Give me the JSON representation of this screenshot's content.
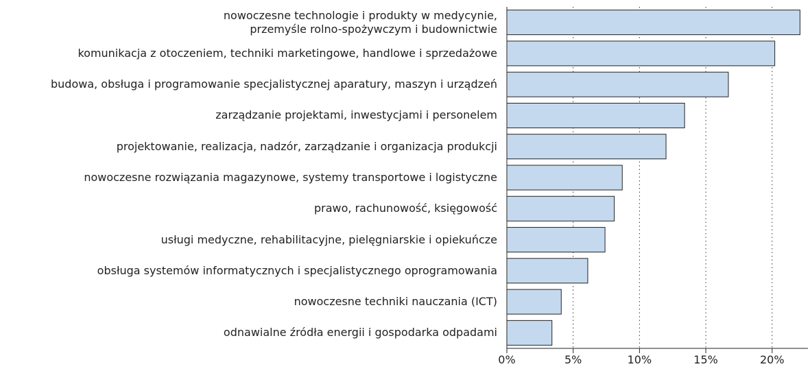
{
  "chart_data": {
    "type": "barh",
    "categories": [
      "nowoczesne technologie i produkty w medycynie,\nprzemyśle rolno-spożywczym i budownictwie",
      "komunikacja z otoczeniem, techniki marketingowe, handlowe i sprzedażowe",
      "budowa, obsługa i programowanie specjalistycznej aparatury, maszyn i urządzeń",
      "zarządzanie projektami, inwestycjami i personelem",
      "projektowanie, realizacja, nadzór, zarządzanie i organizacja produkcji",
      "nowoczesne rozwiązania magazynowe, systemy transportowe i logistyczne",
      "prawo, rachunowość, księgowość",
      "usługi medyczne, rehabilitacyjne, pielęgniarskie i opiekuńcze",
      "obsługa systemów informatycznych i specjalistycznego oprogramowania",
      "nowoczesne techniki nauczania (ICT)",
      "odnawialne źródła energii i gospodarka odpadami"
    ],
    "values": [
      22.1,
      20.2,
      16.7,
      13.4,
      12.0,
      8.7,
      8.1,
      7.4,
      6.1,
      4.1,
      3.4
    ],
    "color": "#c5d9ee",
    "xlim": [
      0,
      22.7
    ],
    "xticks": [
      {
        "value": 0,
        "label": "0%"
      },
      {
        "value": 5,
        "label": "5%"
      },
      {
        "value": 10,
        "label": "10%"
      },
      {
        "value": 15,
        "label": "15%"
      },
      {
        "value": 20,
        "label": "20%"
      }
    ],
    "grid": true
  }
}
